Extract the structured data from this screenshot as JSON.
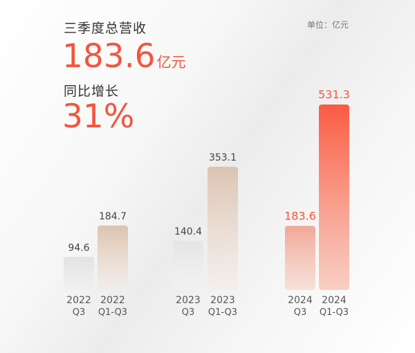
{
  "header": {
    "revenue_label": "三季度总营收",
    "revenue_value": "183.6",
    "revenue_unit": "亿元",
    "growth_label": "同比增长",
    "growth_value": "31%",
    "unit_note": "单位：亿元"
  },
  "colors": {
    "accent": "#f2563e",
    "bar_grey": "#e3e3e3",
    "bar_beige": "#dcc1ad",
    "bar_orange_light": "#f1a796",
    "bar_orange": "#fb5d44",
    "label_grey": "#555555"
  },
  "chart_data": {
    "type": "bar",
    "categories": [
      "2022 Q3",
      "2022 Q1-Q3",
      "2023 Q3",
      "2023 Q1-Q3",
      "2024 Q3",
      "2024 Q1-Q3"
    ],
    "category_lines": [
      [
        "2022",
        "Q3"
      ],
      [
        "2022",
        "Q1-Q3"
      ],
      [
        "2023",
        "Q3"
      ],
      [
        "2023",
        "Q1-Q3"
      ],
      [
        "2024",
        "Q3"
      ],
      [
        "2024",
        "Q1-Q3"
      ]
    ],
    "values": [
      94.6,
      184.7,
      140.4,
      353.1,
      183.6,
      531.3
    ],
    "value_labels": [
      "94.6",
      "184.7",
      "140.4",
      "353.1",
      "183.6",
      "531.3"
    ],
    "ylim": [
      0,
      531.3
    ],
    "grid": false,
    "legend": "none"
  }
}
